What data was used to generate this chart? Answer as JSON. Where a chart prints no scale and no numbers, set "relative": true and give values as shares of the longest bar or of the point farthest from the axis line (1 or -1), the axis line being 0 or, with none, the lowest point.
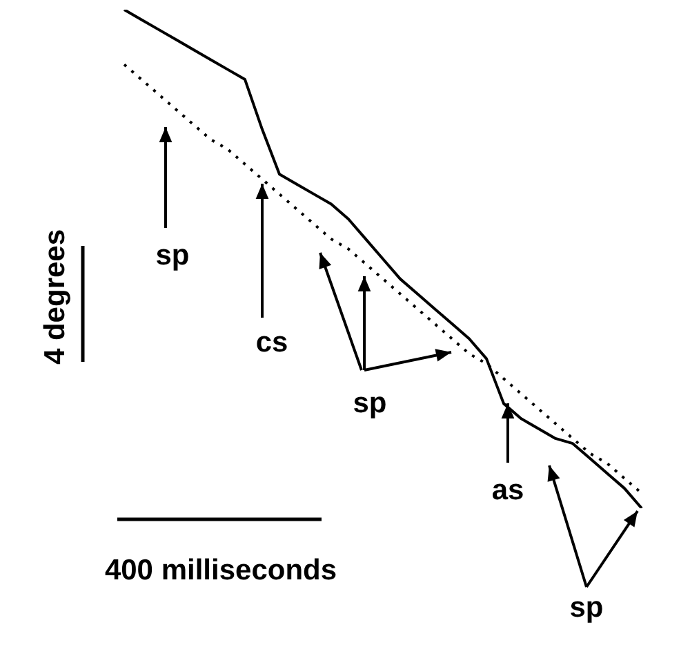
{
  "chart_data": {
    "type": "line",
    "relative": true,
    "categories": [
      null,
      null,
      null,
      null,
      null,
      null,
      null,
      null,
      null,
      null,
      null,
      null,
      null,
      null,
      null,
      null,
      null,
      null,
      null,
      null,
      null,
      null,
      null,
      null,
      null,
      null,
      null,
      null,
      null,
      null,
      null
    ],
    "series": [
      {
        "color": "#000000",
        "line_style": "solid",
        "values": [
          1.0,
          0.98,
          0.96,
          0.94,
          0.92,
          0.9,
          0.88,
          0.86,
          0.76,
          0.67,
          0.65,
          0.63,
          0.61,
          0.58,
          0.54,
          0.5,
          0.46,
          0.43,
          0.4,
          0.37,
          0.34,
          0.3,
          0.21,
          0.18,
          0.16,
          0.14,
          0.13,
          0.1,
          0.07,
          0.04,
          0.0
        ]
      },
      {
        "color": "#000000",
        "line_style": "dotted",
        "values": [
          0.89,
          0.86,
          0.83,
          0.8,
          0.77,
          0.74,
          0.72,
          0.69,
          0.66,
          0.63,
          0.6,
          0.57,
          0.54,
          0.52,
          0.49,
          0.46,
          0.43,
          0.4,
          0.37,
          0.34,
          0.31,
          0.29,
          0.26,
          0.23,
          0.2,
          0.17,
          0.14,
          0.11,
          0.09,
          0.06,
          0.03
        ]
      }
    ],
    "marker": "none",
    "grid": false,
    "legend": false,
    "annotations": [
      "4 degrees",
      "400 milliseconds",
      "sp",
      "cs",
      "sp",
      "as",
      "sp"
    ]
  }
}
